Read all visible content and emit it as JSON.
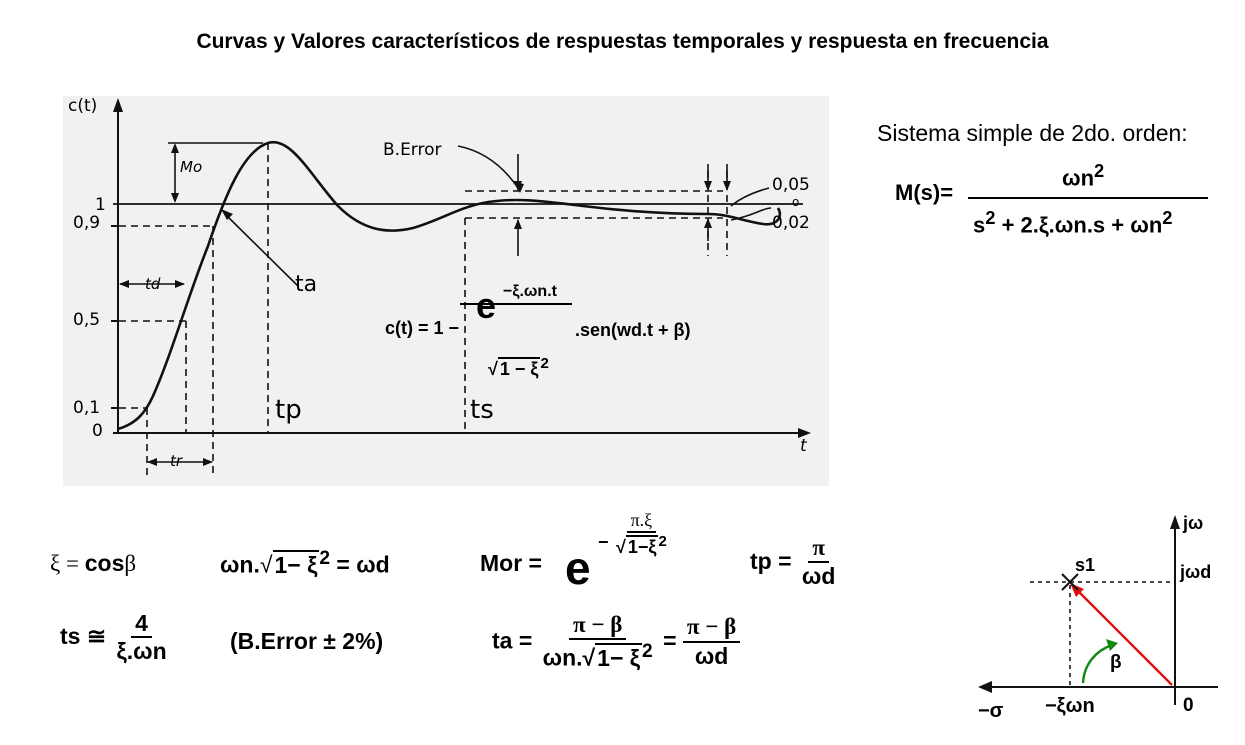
{
  "title": "Curvas y Valores característicos de respuestas temporales y respuesta en frecuencia",
  "plot": {
    "y_axis_label": "c(t)",
    "x_axis_label": "t",
    "y_ticks": [
      "1",
      "0,9",
      "0,5",
      "0,1",
      "0"
    ],
    "annotations": {
      "mo": "Mo",
      "b_error": "B.Error",
      "td": "td",
      "tr": "tr",
      "ta": "ta",
      "tp": "tp",
      "ts": "ts",
      "band_05": "0,05",
      "band_o": "o",
      "band_02": "0,02"
    },
    "formula": {
      "lhs": "c(t) = 1 −",
      "exp": "−ξ.ωn.t",
      "e": "e",
      "den_root": "1 − ξ",
      "den_sup": "2",
      "tail": ".sen(wd.t + β)"
    }
  },
  "system": {
    "heading": "Sistema simple de 2do. orden:",
    "lhs": "M(s)=",
    "num": "ωn",
    "num_sup": "2",
    "den_a": "s",
    "den_a_sup": "2",
    "den_b": "+ 2.ξ.ωn.s + ωn",
    "den_b_sup": "2"
  },
  "formulas": {
    "xi": {
      "lhs": "ξ = ",
      "rhs": "cos",
      "beta": "β"
    },
    "wd": {
      "a": "ωn.",
      "root": "1− ξ",
      "sup": "2",
      "b": " = ωd"
    },
    "mor": {
      "lhs": "Mor = ",
      "e": "e",
      "exp_sign": "−",
      "exp_num": "π.ξ",
      "exp_root": "1−ξ",
      "exp_sup": "2"
    },
    "tp": {
      "lhs": "tp = ",
      "num": "π",
      "den": "ωd"
    },
    "ts": {
      "lhs": "ts ≅ ",
      "num": "4",
      "den": "ξ.ωn"
    },
    "berror": "(B.Error ± 2%)",
    "ta": {
      "lhs": "ta = ",
      "num1": "π − β",
      "den1_a": "ωn.",
      "den1_root": "1− ξ",
      "den1_sup": "2",
      "eq": "=",
      "num2": "π − β",
      "den2": "ωd"
    }
  },
  "splane": {
    "jw": "jω",
    "jwd": "jωd",
    "s1": "s1",
    "beta": "β",
    "minus_sigma": "−σ",
    "minus_xi_wn": "−ξωn",
    "zero": "0",
    "colors": {
      "vector": "#dd1111",
      "arc": "#118811"
    }
  }
}
